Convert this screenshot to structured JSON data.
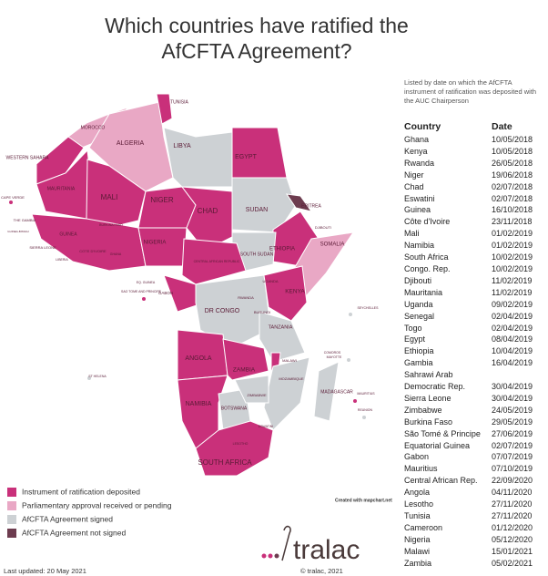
{
  "header": {
    "title": "Which countries have ratified the AfCFTA Agreement?",
    "note": "Listed by date on which the AfCFTA instrument of ratification was deposited with the AUC Chairperson"
  },
  "table": {
    "columns": [
      "Country",
      "Date"
    ],
    "rows": [
      [
        "Ghana",
        "10/05/2018"
      ],
      [
        "Kenya",
        "10/05/2018"
      ],
      [
        "Rwanda",
        "26/05/2018"
      ],
      [
        "Niger",
        "19/06/2018"
      ],
      [
        "Chad",
        "02/07/2018"
      ],
      [
        "Eswatini",
        "02/07/2018"
      ],
      [
        "Guinea",
        "16/10/2018"
      ],
      [
        "Côte d'Ivoire",
        "23/11/2018"
      ],
      [
        "Mali",
        "01/02/2019"
      ],
      [
        "Namibia",
        "01/02/2019"
      ],
      [
        "South Africa",
        "10/02/2019"
      ],
      [
        "Congo. Rep.",
        "10/02/2019"
      ],
      [
        "Djibouti",
        "11/02/2019"
      ],
      [
        "Mauritania",
        "11/02/2019"
      ],
      [
        "Uganda",
        "09/02/2019"
      ],
      [
        "Senegal",
        "02/04/2019"
      ],
      [
        "Togo",
        "02/04/2019"
      ],
      [
        "Egypt",
        "08/04/2019"
      ],
      [
        "Ethiopia",
        "10/04/2019"
      ],
      [
        "Gambia",
        "16/04/2019"
      ],
      [
        "Sahrawi Arab Democratic Rep.",
        "30/04/2019"
      ],
      [
        "Sierra Leone",
        "30/04/2019"
      ],
      [
        "Zimbabwe",
        "24/05/2019"
      ],
      [
        "Burkina Faso",
        "29/05/2019"
      ],
      [
        "São Tomé & Principe",
        "27/06/2019"
      ],
      [
        "Equatorial Guinea",
        "02/07/2019"
      ],
      [
        "Gabon",
        "07/07/2019"
      ],
      [
        "Mauritius",
        "07/10/2019"
      ],
      [
        "Central African Rep.",
        "22/09/2020"
      ],
      [
        "Angola",
        "04/11/2020"
      ],
      [
        "Lesotho",
        "27/11/2020"
      ],
      [
        "Tunisia",
        "27/11/2020"
      ],
      [
        "Cameroon",
        "01/12/2020"
      ],
      [
        "Nigeria",
        "05/12/2020"
      ],
      [
        "Malawi",
        "15/01/2021"
      ],
      [
        "Zambia",
        "05/02/2021"
      ]
    ]
  },
  "legend": [
    {
      "label": "Instrument of ratification deposited",
      "color": "#c9307a"
    },
    {
      "label": "Parliamentary approval received or pending",
      "color": "#e9a8c5"
    },
    {
      "label": "AfCFTA Agreement signed",
      "color": "#cdd1d4"
    },
    {
      "label": "AfCFTA Agreement not signed",
      "color": "#6d3c4f"
    }
  ],
  "map_labels": [
    "TUNISIA",
    "MOROCCO",
    "ALGERIA",
    "LIBYA",
    "EGYPT",
    "WESTERN SAHARA",
    "MAURITANIA",
    "MALI",
    "NIGER",
    "CHAD",
    "SUDAN",
    "ERITREA",
    "DJIBOUTI",
    "SOMALIA",
    "ETHIOPIA",
    "SOUTH SUDAN",
    "CAPE VERDE",
    "THE GAMBIA",
    "GUINEA-BISSAU",
    "GUINEA",
    "SIERRA LEONE",
    "LIBERIA",
    "COTE D'IVOIRE",
    "GHANA",
    "BURKINA FASO",
    "NIGERIA",
    "CENTRAL AFRICAN REPUBLIC",
    "EQ. GUINEA",
    "SAO TOME AND PRINCIPE",
    "GABON",
    "DR CONGO",
    "UGANDA",
    "KENYA",
    "RWANDA",
    "BURUNDI",
    "TANZANIA",
    "SEYCHELLES",
    "COMOROS",
    "MAYOTTE",
    "MALAWI",
    "ANGOLA",
    "ZAMBIA",
    "MOZAMBIQUE",
    "ZIMBABWE",
    "NAMIBIA",
    "BOTSWANA",
    "MADAGASCAR",
    "MAURITIUS",
    "REUNION",
    "ST HELENA",
    "ESWATINI",
    "LESOTHO",
    "SOUTH AFRICA"
  ],
  "footer": {
    "updated": "Last updated: 20 May 2021",
    "copyright": "© tralac, 2021",
    "logo": "tralac",
    "credit": "Created with mapchart.net"
  }
}
